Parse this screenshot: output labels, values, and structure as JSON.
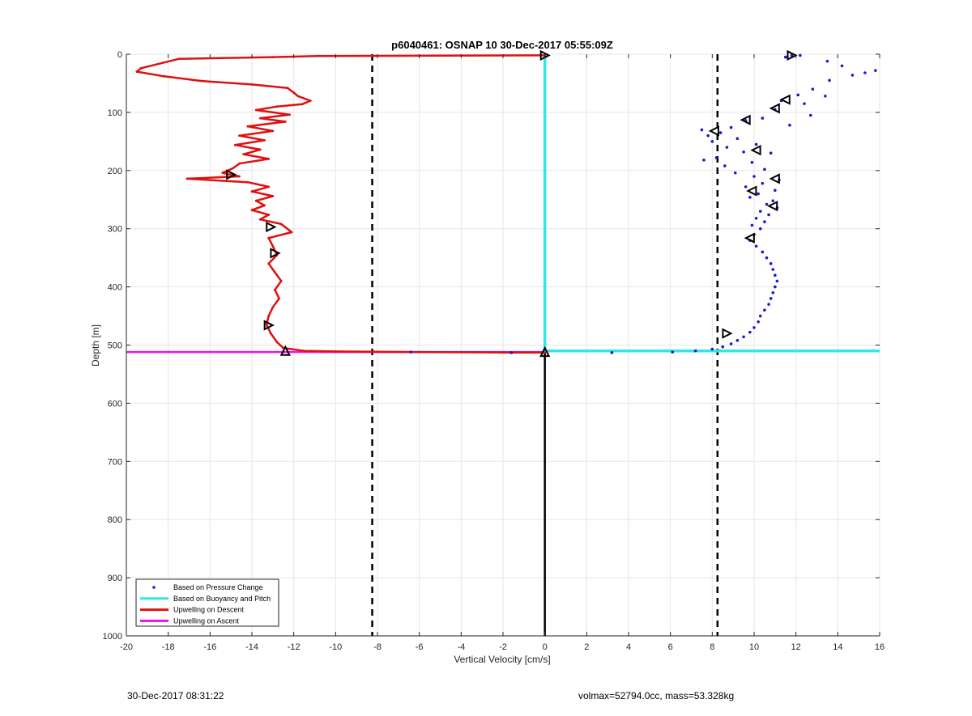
{
  "chart_data": {
    "type": "scatter",
    "title": "p6040461: OSNAP 10 30-Dec-2017 05:55:09Z",
    "xlabel": "Vertical Velocity [cm/s]",
    "ylabel": "Depth [m]",
    "xlim": [
      -20,
      16
    ],
    "ylim": [
      0,
      1000
    ],
    "y_reversed": true,
    "grid": true,
    "legend_location": "bottom-left",
    "xticks": [
      -20,
      -18,
      -16,
      -14,
      -12,
      -10,
      -8,
      -6,
      -4,
      -2,
      0,
      2,
      4,
      6,
      8,
      10,
      12,
      14,
      16
    ],
    "yticks": [
      0,
      100,
      200,
      300,
      400,
      500,
      600,
      700,
      800,
      900,
      1000
    ],
    "colors": {
      "pressure": "#1a1acc",
      "buoyancy": "#33e6e6",
      "descent": "#dd1111",
      "ascent": "#ee11ee",
      "reference": "#000000"
    },
    "reference_lines": {
      "dashed_x": [
        -8.25,
        8.25
      ],
      "solid_x_segment": {
        "x": 0,
        "depth_from": 512,
        "depth_to": 1000
      }
    },
    "series": [
      {
        "name": "Based on Pressure Change",
        "style": "dots",
        "points": [
          [
            11.8,
            2
          ],
          [
            12.2,
            2
          ],
          [
            11.5,
            5
          ],
          [
            13.5,
            12
          ],
          [
            14.2,
            20
          ],
          [
            15.8,
            28
          ],
          [
            15.3,
            32
          ],
          [
            14.7,
            36
          ],
          [
            13.6,
            45
          ],
          [
            12.8,
            60
          ],
          [
            12.1,
            70
          ],
          [
            13.4,
            72
          ],
          [
            11.3,
            80
          ],
          [
            12.4,
            85
          ],
          [
            11.0,
            95
          ],
          [
            12.7,
            105
          ],
          [
            10.4,
            110
          ],
          [
            9.6,
            114
          ],
          [
            11.7,
            122
          ],
          [
            8.9,
            126
          ],
          [
            7.5,
            130
          ],
          [
            8.4,
            135
          ],
          [
            7.8,
            140
          ],
          [
            9.2,
            145
          ],
          [
            8.0,
            150
          ],
          [
            10.1,
            155
          ],
          [
            8.7,
            160
          ],
          [
            9.5,
            168
          ],
          [
            10.8,
            170
          ],
          [
            8.2,
            178
          ],
          [
            7.6,
            182
          ],
          [
            9.9,
            186
          ],
          [
            8.6,
            192
          ],
          [
            10.5,
            198
          ],
          [
            9.1,
            204
          ],
          [
            10.0,
            210
          ],
          [
            11.2,
            216
          ],
          [
            10.4,
            222
          ],
          [
            9.6,
            228
          ],
          [
            11.0,
            234
          ],
          [
            10.2,
            240
          ],
          [
            9.8,
            246
          ],
          [
            10.9,
            252
          ],
          [
            10.6,
            258
          ],
          [
            11.1,
            264
          ],
          [
            10.3,
            270
          ],
          [
            10.7,
            276
          ],
          [
            10.1,
            282
          ],
          [
            10.5,
            288
          ],
          [
            9.9,
            294
          ],
          [
            10.3,
            300
          ],
          [
            10.0,
            310
          ],
          [
            9.8,
            320
          ],
          [
            10.1,
            330
          ],
          [
            10.4,
            340
          ],
          [
            10.6,
            350
          ],
          [
            10.8,
            360
          ],
          [
            10.9,
            370
          ],
          [
            11.0,
            380
          ],
          [
            11.1,
            390
          ],
          [
            11.0,
            400
          ],
          [
            10.9,
            410
          ],
          [
            10.8,
            420
          ],
          [
            10.7,
            430
          ],
          [
            10.5,
            440
          ],
          [
            10.3,
            450
          ],
          [
            10.2,
            460
          ],
          [
            10.0,
            470
          ],
          [
            9.8,
            478
          ],
          [
            9.5,
            486
          ],
          [
            9.2,
            492
          ],
          [
            8.9,
            498
          ],
          [
            8.5,
            503
          ],
          [
            8.0,
            507
          ],
          [
            7.2,
            510
          ],
          [
            6.1,
            512
          ],
          [
            3.2,
            513
          ],
          [
            -1.6,
            513
          ],
          [
            -6.4,
            512
          ]
        ]
      },
      {
        "name": "Based on Buoyancy and Pitch",
        "style": "thick-line",
        "points": [
          [
            0,
            2
          ],
          [
            0,
            510
          ],
          [
            16,
            510
          ]
        ]
      },
      {
        "name": "Upwelling on Descent",
        "style": "line",
        "points": [
          [
            0,
            2
          ],
          [
            -10.8,
            3
          ],
          [
            -13,
            5
          ],
          [
            -17.5,
            8
          ],
          [
            -19.3,
            24
          ],
          [
            -19.5,
            30
          ],
          [
            -18.2,
            38
          ],
          [
            -16.4,
            46
          ],
          [
            -14.0,
            52
          ],
          [
            -12.3,
            58
          ],
          [
            -12.0,
            66
          ],
          [
            -11.8,
            72
          ],
          [
            -11.2,
            80
          ],
          [
            -11.6,
            86
          ],
          [
            -12.8,
            90
          ],
          [
            -13.8,
            96
          ],
          [
            -12.2,
            104
          ],
          [
            -13.6,
            110
          ],
          [
            -12.4,
            116
          ],
          [
            -14.2,
            124
          ],
          [
            -13.0,
            132
          ],
          [
            -14.6,
            140
          ],
          [
            -13.4,
            148
          ],
          [
            -14.8,
            156
          ],
          [
            -13.6,
            164
          ],
          [
            -14.4,
            172
          ],
          [
            -13.2,
            180
          ],
          [
            -14.6,
            188
          ],
          [
            -14.9,
            196
          ],
          [
            -15.4,
            204
          ],
          [
            -14.6,
            210
          ],
          [
            -17.1,
            214
          ],
          [
            -14.2,
            220
          ],
          [
            -13.2,
            228
          ],
          [
            -14.0,
            236
          ],
          [
            -13.0,
            244
          ],
          [
            -13.8,
            252
          ],
          [
            -13.4,
            260
          ],
          [
            -14.0,
            268
          ],
          [
            -13.2,
            276
          ],
          [
            -13.6,
            284
          ],
          [
            -12.6,
            292
          ],
          [
            -12.1,
            306
          ],
          [
            -13.2,
            316
          ],
          [
            -13.0,
            330
          ],
          [
            -12.8,
            345
          ],
          [
            -13.2,
            360
          ],
          [
            -12.9,
            375
          ],
          [
            -12.6,
            390
          ],
          [
            -12.9,
            405
          ],
          [
            -12.7,
            420
          ],
          [
            -13.0,
            435
          ],
          [
            -13.2,
            450
          ],
          [
            -13.3,
            465
          ],
          [
            -13.1,
            480
          ],
          [
            -12.8,
            495
          ],
          [
            -12.5,
            505
          ],
          [
            -11.5,
            510
          ],
          [
            -10.0,
            511
          ],
          [
            -6.4,
            512
          ],
          [
            -1.6,
            513
          ],
          [
            0,
            513
          ]
        ]
      },
      {
        "name": "Upwelling on Ascent",
        "style": "line",
        "points": [
          [
            -20,
            512
          ],
          [
            0,
            512
          ]
        ]
      }
    ],
    "markers": [
      {
        "x": 0,
        "y": 2,
        "shape": "tri-right"
      },
      {
        "x": 11.8,
        "y": 2,
        "shape": "tri-right"
      },
      {
        "x": 11.5,
        "y": 78,
        "shape": "tri-left"
      },
      {
        "x": 11.0,
        "y": 93,
        "shape": "tri-left"
      },
      {
        "x": 9.6,
        "y": 113,
        "shape": "tri-left"
      },
      {
        "x": 8.1,
        "y": 132,
        "shape": "tri-left"
      },
      {
        "x": 10.1,
        "y": 165,
        "shape": "tri-left"
      },
      {
        "x": 11.0,
        "y": 214,
        "shape": "tri-left"
      },
      {
        "x": 9.9,
        "y": 235,
        "shape": "tri-left"
      },
      {
        "x": 10.9,
        "y": 261,
        "shape": "tri-left"
      },
      {
        "x": 9.8,
        "y": 316,
        "shape": "tri-left"
      },
      {
        "x": 8.7,
        "y": 480,
        "shape": "tri-right"
      },
      {
        "x": -15.0,
        "y": 207,
        "shape": "tri-right"
      },
      {
        "x": -13.1,
        "y": 297,
        "shape": "tri-right"
      },
      {
        "x": -12.9,
        "y": 342,
        "shape": "tri-right"
      },
      {
        "x": -13.2,
        "y": 466,
        "shape": "tri-right"
      },
      {
        "x": -12.4,
        "y": 510,
        "shape": "tri-up"
      },
      {
        "x": 0,
        "y": 512,
        "shape": "tri-up"
      }
    ]
  },
  "footer": {
    "timestamp": "30-Dec-2017 08:31:22",
    "params": "volmax=52794.0cc, mass=53.328kg"
  }
}
